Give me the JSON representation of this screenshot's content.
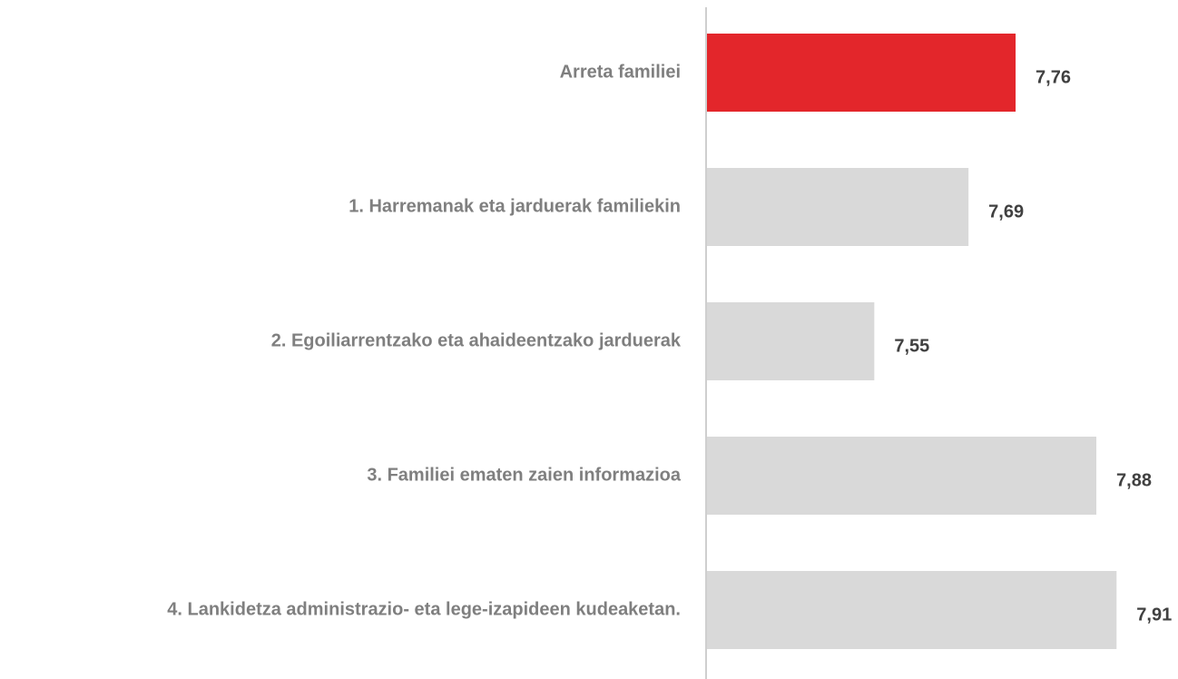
{
  "chart_data": {
    "type": "bar",
    "orientation": "horizontal",
    "categories": [
      "Arreta familiei",
      "1. Harremanak eta jarduerak familiekin",
      "2. Egoiliarrentzako eta ahaideentzako jarduerak",
      "3. Familiei ematen zaien informazioa",
      "4. Lankidetza administrazio- eta lege-izapideen kudeaketan."
    ],
    "values": [
      7.76,
      7.69,
      7.55,
      7.88,
      7.91
    ],
    "value_labels": [
      "7,76",
      "7,69",
      "7,55",
      "7,88",
      "7,91"
    ],
    "colors": [
      "#e3262b",
      "#d9d9d9",
      "#d9d9d9",
      "#d9d9d9",
      "#d9d9d9"
    ],
    "xlim": [
      7.3,
      8.0
    ]
  }
}
